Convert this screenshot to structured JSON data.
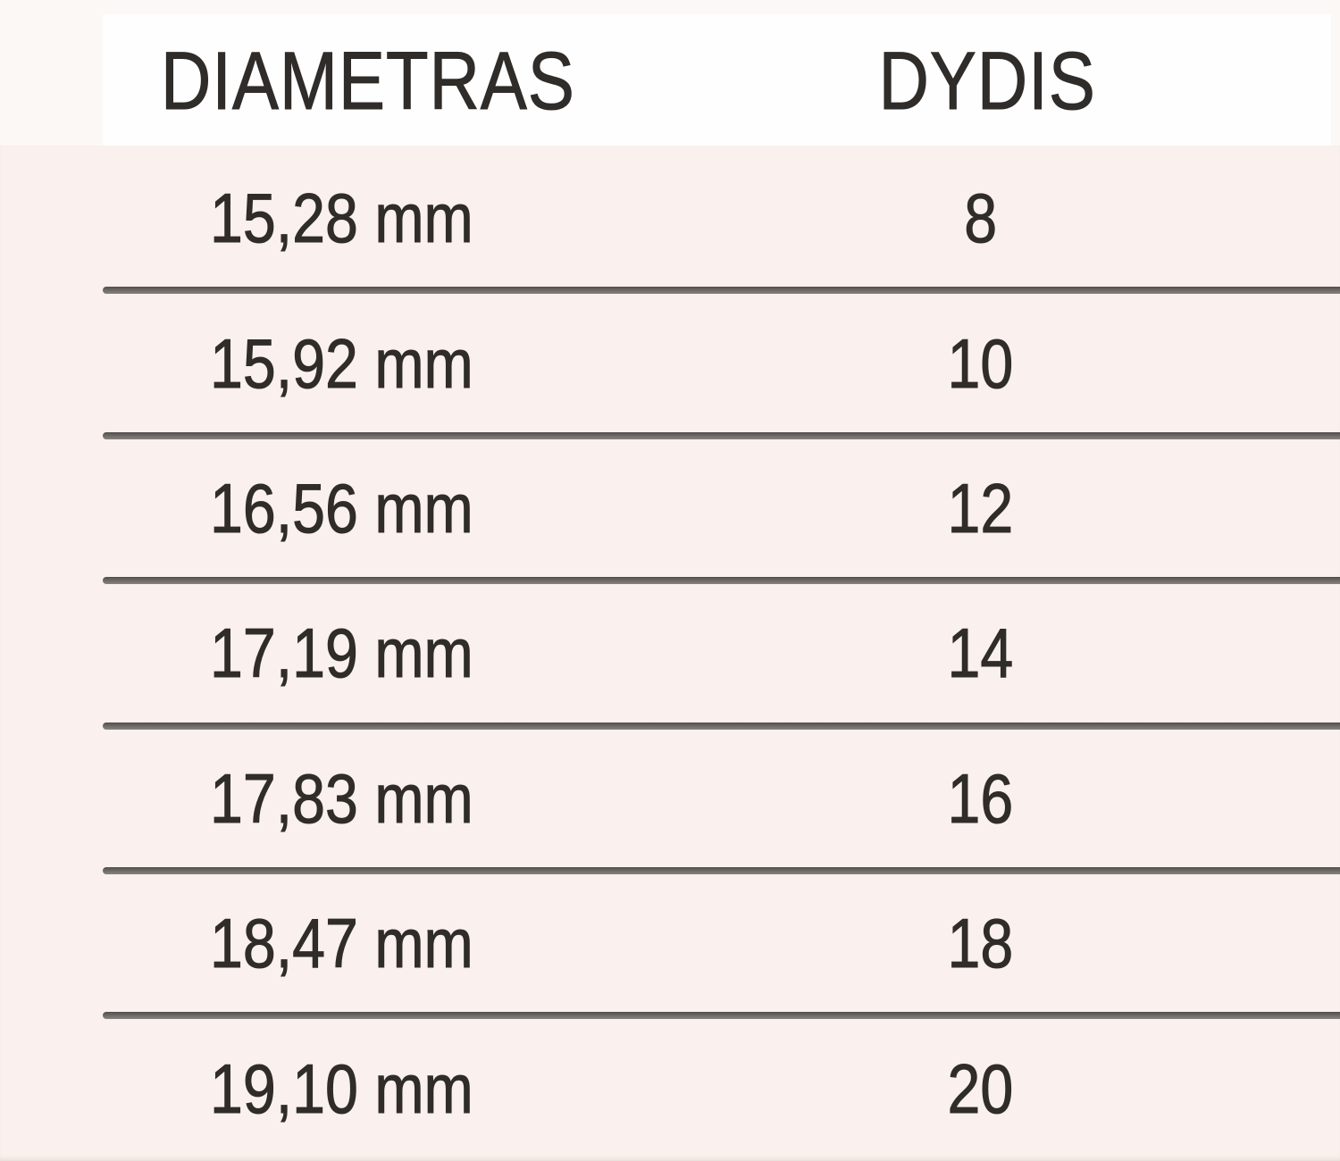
{
  "chart_data": {
    "type": "table",
    "columns": [
      "DIAMETRAS",
      "DYDIS"
    ],
    "rows": [
      [
        "15,28 mm",
        "8"
      ],
      [
        "15,92 mm",
        "10"
      ],
      [
        "16,56 mm",
        "12"
      ],
      [
        "17,19 mm",
        "14"
      ],
      [
        "17,83 mm",
        "16"
      ],
      [
        "18,47 mm",
        "18"
      ],
      [
        "19,10 mm",
        "20"
      ]
    ],
    "layout_hints": {
      "header_row_background": "#ffffff",
      "body_background": "#faf0ed",
      "grid": "horizontal-dividers-only"
    }
  },
  "colors": {
    "table_background": "#faf0ed",
    "header_background": "#ffffff",
    "divider": "#6b6764",
    "text": "#2f2c29"
  }
}
